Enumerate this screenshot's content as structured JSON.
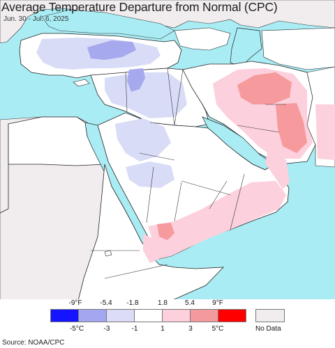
{
  "title": "Average Temperature Departure from Normal (CPC)",
  "subtitle": "Jun. 30 - Jul. 6, 2025",
  "source": "Source: NOAA/CPC",
  "colors": {
    "ocean": "#a9ecf4",
    "land_outside": "#f1edef",
    "land_white": "#ffffff",
    "light_blue": "#d8dcf6",
    "mid_blue": "#a7a9ee",
    "light_pink": "#fcd0dc",
    "mid_pink": "#f69a9e",
    "border": "#222222"
  },
  "legend": {
    "f_labels": [
      "-9°F",
      "-5.4",
      "-1.8",
      "1.8",
      "5.4",
      "9°F"
    ],
    "c_labels": [
      "-5°C",
      "-3",
      "-1",
      "1",
      "3",
      "5°C"
    ],
    "colors": [
      "#1414ff",
      "#a4a6f0",
      "#dcdcf8",
      "#ffffff",
      "#fcd0dc",
      "#f59a9c",
      "#ff0000"
    ],
    "nodata_label": "No Data",
    "nodata_color": "#f1edef"
  }
}
